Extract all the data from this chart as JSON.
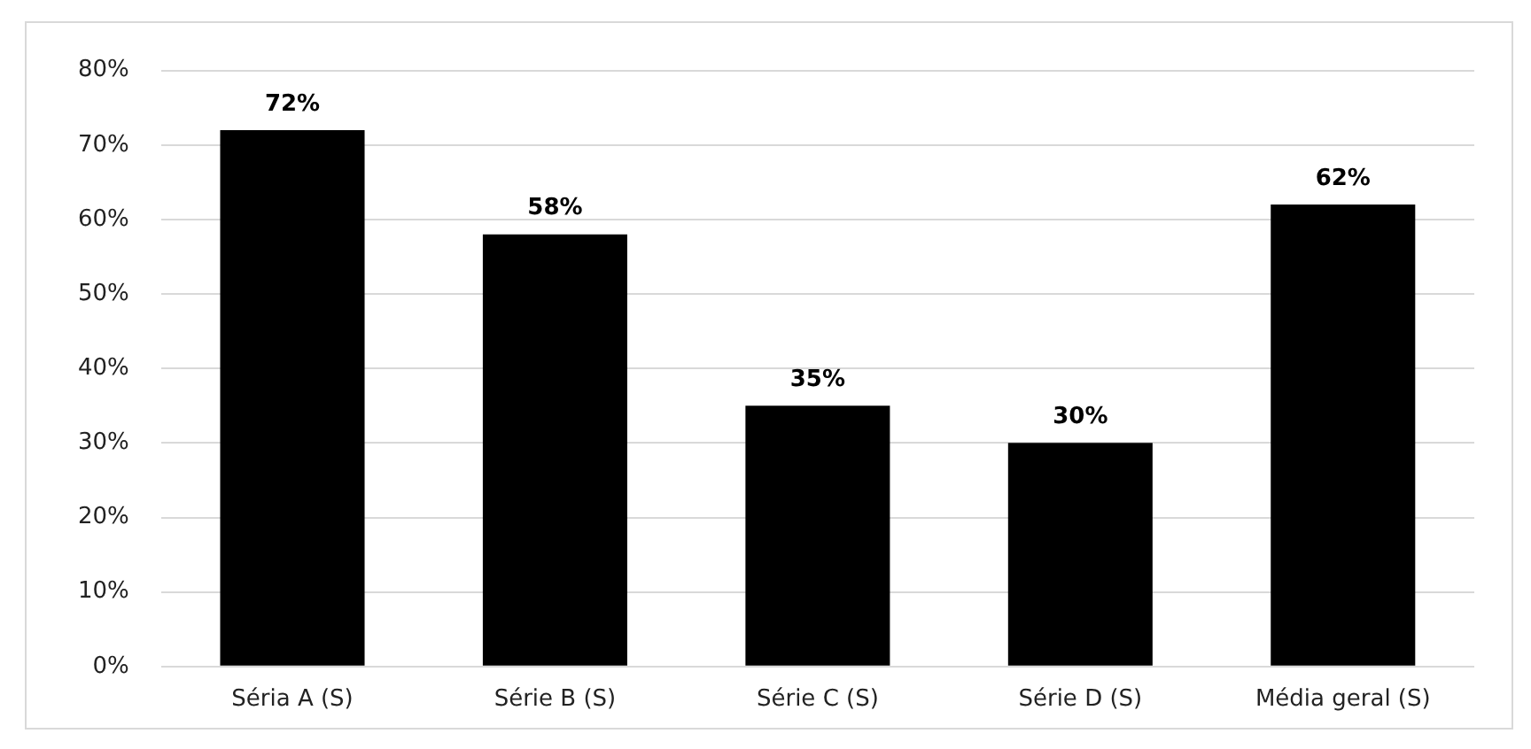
{
  "chart_data": {
    "type": "bar",
    "categories": [
      "Séria A (S)",
      "Série B (S)",
      "Série C (S)",
      "Série D (S)",
      "Média geral (S)"
    ],
    "values": [
      72,
      58,
      35,
      30,
      62
    ],
    "color": "#000000",
    "value_labels": [
      "72%",
      "58%",
      "35%",
      "30%",
      "62%"
    ],
    "ylim": [
      0,
      80
    ],
    "yticks": [
      {
        "value": 0,
        "label": "0%"
      },
      {
        "value": 10,
        "label": "10%"
      },
      {
        "value": 20,
        "label": "20%"
      },
      {
        "value": 30,
        "label": "30%"
      },
      {
        "value": 40,
        "label": "40%"
      },
      {
        "value": 50,
        "label": "50%"
      },
      {
        "value": 60,
        "label": "60%"
      },
      {
        "value": 70,
        "label": "70%"
      },
      {
        "value": 80,
        "label": "80%"
      }
    ],
    "grid": "y",
    "legend": false
  }
}
